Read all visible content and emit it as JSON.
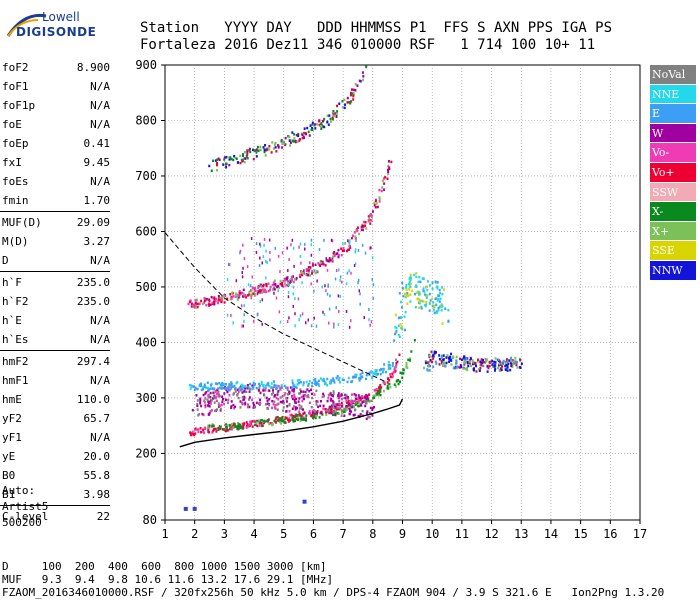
{
  "logo": {
    "line1": "Lowell",
    "line2": "DIGISONDE"
  },
  "header": {
    "line1": "Station   YYYY DAY   DDD HHMMSS P1  FFS S AXN PPS IGA PS",
    "line2": "Fortaleza 2016 Dez11 346 010000 RSF   1 714 100 10+ 11"
  },
  "params": {
    "group1": [
      {
        "name": "foF2",
        "value": "8.900"
      },
      {
        "name": "foF1",
        "value": "N/A"
      },
      {
        "name": "foF1p",
        "value": "N/A"
      },
      {
        "name": "foE",
        "value": "N/A"
      },
      {
        "name": "foEp",
        "value": "0.41"
      },
      {
        "name": "fxI",
        "value": "9.45"
      },
      {
        "name": "foEs",
        "value": "N/A"
      },
      {
        "name": "fmin",
        "value": "1.70"
      }
    ],
    "group2": [
      {
        "name": "MUF(D)",
        "value": "29.09"
      },
      {
        "name": "M(D)",
        "value": "3.27"
      },
      {
        "name": "D",
        "value": "N/A"
      }
    ],
    "group3": [
      {
        "name": "h`F",
        "value": "235.0"
      },
      {
        "name": "h`F2",
        "value": "235.0"
      },
      {
        "name": "h`E",
        "value": "N/A"
      },
      {
        "name": "h`Es",
        "value": "N/A"
      }
    ],
    "group4": [
      {
        "name": "hmF2",
        "value": "297.4"
      },
      {
        "name": "hmF1",
        "value": "N/A"
      },
      {
        "name": "hmE",
        "value": "110.0"
      },
      {
        "name": "yF2",
        "value": "65.7"
      },
      {
        "name": "yF1",
        "value": "N/A"
      },
      {
        "name": "yE",
        "value": "20.0"
      },
      {
        "name": "B0",
        "value": "55.8"
      },
      {
        "name": "B1",
        "value": "3.98"
      }
    ],
    "group5": [
      {
        "name": "C-level",
        "value": "22"
      }
    ]
  },
  "auto": {
    "line1": "Auto:",
    "line2": "Artist5",
    "line3": "500200"
  },
  "legend": [
    {
      "label": "NoVal",
      "color": "#808080"
    },
    {
      "label": "NNE",
      "color": "#22d8ea"
    },
    {
      "label": "E",
      "color": "#3c9ef5"
    },
    {
      "label": "W",
      "color": "#a000a0"
    },
    {
      "label": "Vo-",
      "color": "#f03cb4"
    },
    {
      "label": "Vo+",
      "color": "#ee0033"
    },
    {
      "label": "SSW",
      "color": "#f4aab4"
    },
    {
      "label": "X-",
      "color": "#0a8a1e"
    },
    {
      "label": "X+",
      "color": "#7cc05a"
    },
    {
      "label": "SSE",
      "color": "#d8d400"
    },
    {
      "label": "NNW",
      "color": "#1414d8"
    }
  ],
  "bottom": {
    "d_label": "D",
    "d_values": "100  200  400  600  800 1000 1500 3000 [km]",
    "muf_label": "MUF",
    "muf_values": "9.3  9.4  9.8 10.6 11.6 13.2 17.6 29.1 [MHz]",
    "footer": "FZAOM_2016346010000.RSF / 320fx256h 50 kHz 5.0 km / DPS-4 FZAOM 904 / 3.9 S 321.6 E   Ion2Png 1.3.20"
  },
  "chart_data": {
    "type": "scatter",
    "title": "",
    "xlabel": "",
    "ylabel": "",
    "xlim": [
      1,
      17
    ],
    "ylim": [
      80,
      900
    ],
    "xticks": [
      1,
      2,
      3,
      4,
      5,
      6,
      7,
      8,
      9,
      10,
      11,
      12,
      13,
      14,
      15,
      16,
      17
    ],
    "yticks": [
      80,
      200,
      300,
      400,
      500,
      600,
      700,
      800,
      900
    ],
    "grid": true,
    "series": [
      {
        "name": "Vo+",
        "role": "o-trace",
        "x": [
          1.8,
          2.5,
          3.5,
          4.5,
          5.5,
          6.5,
          7.5,
          8.2,
          8.7,
          8.9
        ],
        "y": [
          240,
          245,
          252,
          260,
          268,
          280,
          298,
          318,
          350,
          390
        ]
      },
      {
        "name": "X-",
        "role": "x-trace",
        "x": [
          2.2,
          3,
          4,
          5,
          6,
          7,
          8,
          8.8,
          9.2,
          9.4
        ],
        "y": [
          248,
          250,
          255,
          262,
          270,
          282,
          305,
          330,
          370,
          410
        ]
      },
      {
        "name": "W",
        "role": "spread",
        "x": [
          2,
          3,
          4,
          5,
          6,
          7,
          8
        ],
        "y": [
          290,
          300,
          305,
          300,
          295,
          290,
          285
        ]
      },
      {
        "name": "E",
        "role": "band",
        "x": [
          1.8,
          3,
          4,
          5,
          6,
          7,
          8,
          8.7
        ],
        "y": [
          323,
          323,
          325,
          325,
          330,
          335,
          345,
          365
        ]
      },
      {
        "name": "NNW",
        "role": "cluster",
        "x": [
          9.7,
          10,
          10.5,
          11,
          11.5,
          12,
          12.5,
          13
        ],
        "y": [
          360,
          375,
          370,
          365,
          360,
          362,
          363,
          365
        ]
      },
      {
        "name": "NNE",
        "role": "spread-high",
        "x": [
          8.8,
          9,
          9.2,
          10.2,
          10.4
        ],
        "y": [
          430,
          470,
          500,
          480,
          460
        ]
      },
      {
        "name": "Vo+ 2nd hop",
        "role": "second-hop",
        "x": [
          1.8,
          3,
          4,
          5,
          6,
          7,
          7.8,
          8.3,
          8.6
        ],
        "y": [
          470,
          480,
          495,
          510,
          535,
          570,
          620,
          680,
          740
        ]
      },
      {
        "name": "Vo+ 3rd hop",
        "role": "third-hop",
        "x": [
          2.5,
          3.5,
          4.5,
          5.5,
          6.5,
          7.2,
          7.7
        ],
        "y": [
          720,
          735,
          752,
          775,
          805,
          840,
          890
        ]
      }
    ],
    "profile": {
      "x": [
        1.5,
        2,
        3,
        4,
        5,
        6,
        7,
        8,
        8.5,
        8.9,
        9.0
      ],
      "y": [
        212,
        220,
        228,
        234,
        240,
        248,
        258,
        272,
        280,
        287,
        298
      ]
    },
    "second_hop_profile": {
      "x": [
        1,
        2,
        3,
        4,
        5,
        6,
        7,
        7.8,
        8.4
      ],
      "y": [
        598,
        535,
        480,
        445,
        415,
        390,
        365,
        345,
        330
      ]
    },
    "isolated_points": [
      {
        "x": 1.7,
        "y": 100
      },
      {
        "x": 2.0,
        "y": 100
      },
      {
        "x": 5.7,
        "y": 113
      }
    ]
  }
}
